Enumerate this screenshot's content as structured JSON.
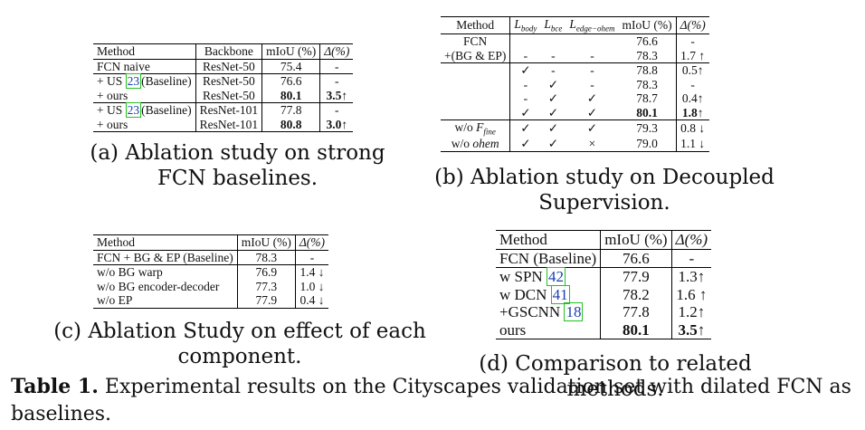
{
  "table_a": {
    "headers": [
      "Method",
      "Backbone",
      "mIoU (%)",
      "Δ(%)"
    ],
    "rows": [
      {
        "method": "FCN naive",
        "backbone": "ResNet-50",
        "miou": "75.4",
        "delta": "-"
      },
      {
        "method_pre": "+ US ",
        "cite": "23",
        "method_post": "(Baseline)",
        "backbone": "ResNet-50",
        "miou": "76.6",
        "delta": "-"
      },
      {
        "method": "+ ours",
        "backbone": "ResNet-50",
        "miou": "80.1",
        "delta": "3.5↑"
      },
      {
        "method_pre": "+ US ",
        "cite": "23",
        "method_post": "(Baseline)",
        "backbone": "ResNet-101",
        "miou": "77.8",
        "delta": "-"
      },
      {
        "method": "+ ours",
        "backbone": "ResNet-101",
        "miou": "80.8",
        "delta": "3.0↑"
      }
    ],
    "caption": "(a) Ablation study on strong FCN baselines."
  },
  "table_b": {
    "headers": [
      "Method",
      "L_body",
      "L_bce",
      "L_edge−ohem",
      "mIoU (%)",
      "Δ(%)"
    ],
    "rows": [
      [
        "FCN",
        "",
        "",
        "",
        "76.6",
        "-"
      ],
      [
        "+(BG & EP)",
        "-",
        "-",
        "-",
        "78.3",
        "1.7 ↑"
      ],
      [
        "",
        "✓",
        "-",
        "-",
        "78.8",
        "0.5↑"
      ],
      [
        "",
        "-",
        "✓",
        "-",
        "78.3",
        "-"
      ],
      [
        "",
        "-",
        "✓",
        "✓",
        "78.7",
        "0.4↑"
      ],
      [
        "",
        "✓",
        "✓",
        "✓",
        "80.1",
        "1.8↑"
      ],
      [
        "w/o F_fine",
        "✓",
        "✓",
        "✓",
        "79.3",
        "0.8 ↓"
      ],
      [
        "w/o ohem",
        "✓",
        "✓",
        "×",
        "79.0",
        "1.1 ↓"
      ]
    ],
    "caption": "(b) Ablation study on Decoupled Supervision."
  },
  "table_c": {
    "headers": [
      "Method",
      "mIoU (%)",
      "Δ(%)"
    ],
    "rows": [
      [
        "FCN + BG & EP (Baseline)",
        "78.3",
        "-"
      ],
      [
        "w/o BG warp",
        "76.9",
        "1.4 ↓"
      ],
      [
        "w/o BG encoder-decoder",
        "77.3",
        "1.0 ↓"
      ],
      [
        "w/o EP",
        "77.9",
        "0.4 ↓"
      ]
    ],
    "caption": "(c) Ablation Study on effect of each component."
  },
  "table_d": {
    "headers": [
      "Method",
      "mIoU (%)",
      "Δ(%)"
    ],
    "rows": [
      {
        "pre": "FCN (Baseline)",
        "cite": "",
        "miou": "76.6",
        "delta": "-"
      },
      {
        "pre": "w SPN ",
        "cite": "42",
        "miou": "77.9",
        "delta": "1.3↑"
      },
      {
        "pre": "w DCN ",
        "cite": "41",
        "miou": "78.2",
        "delta": "1.6 ↑"
      },
      {
        "pre": "+GSCNN ",
        "cite": "18",
        "miou": "77.8",
        "delta": "1.2↑"
      },
      {
        "pre": "ours",
        "cite": "",
        "miou": "80.1",
        "delta": "3.5↑"
      }
    ],
    "caption": "(d) Comparison to related methods."
  },
  "main_caption": {
    "label": "Table 1.",
    "text": " Experimental results on the Cityscapes validation set with dilated FCN as baselines."
  }
}
